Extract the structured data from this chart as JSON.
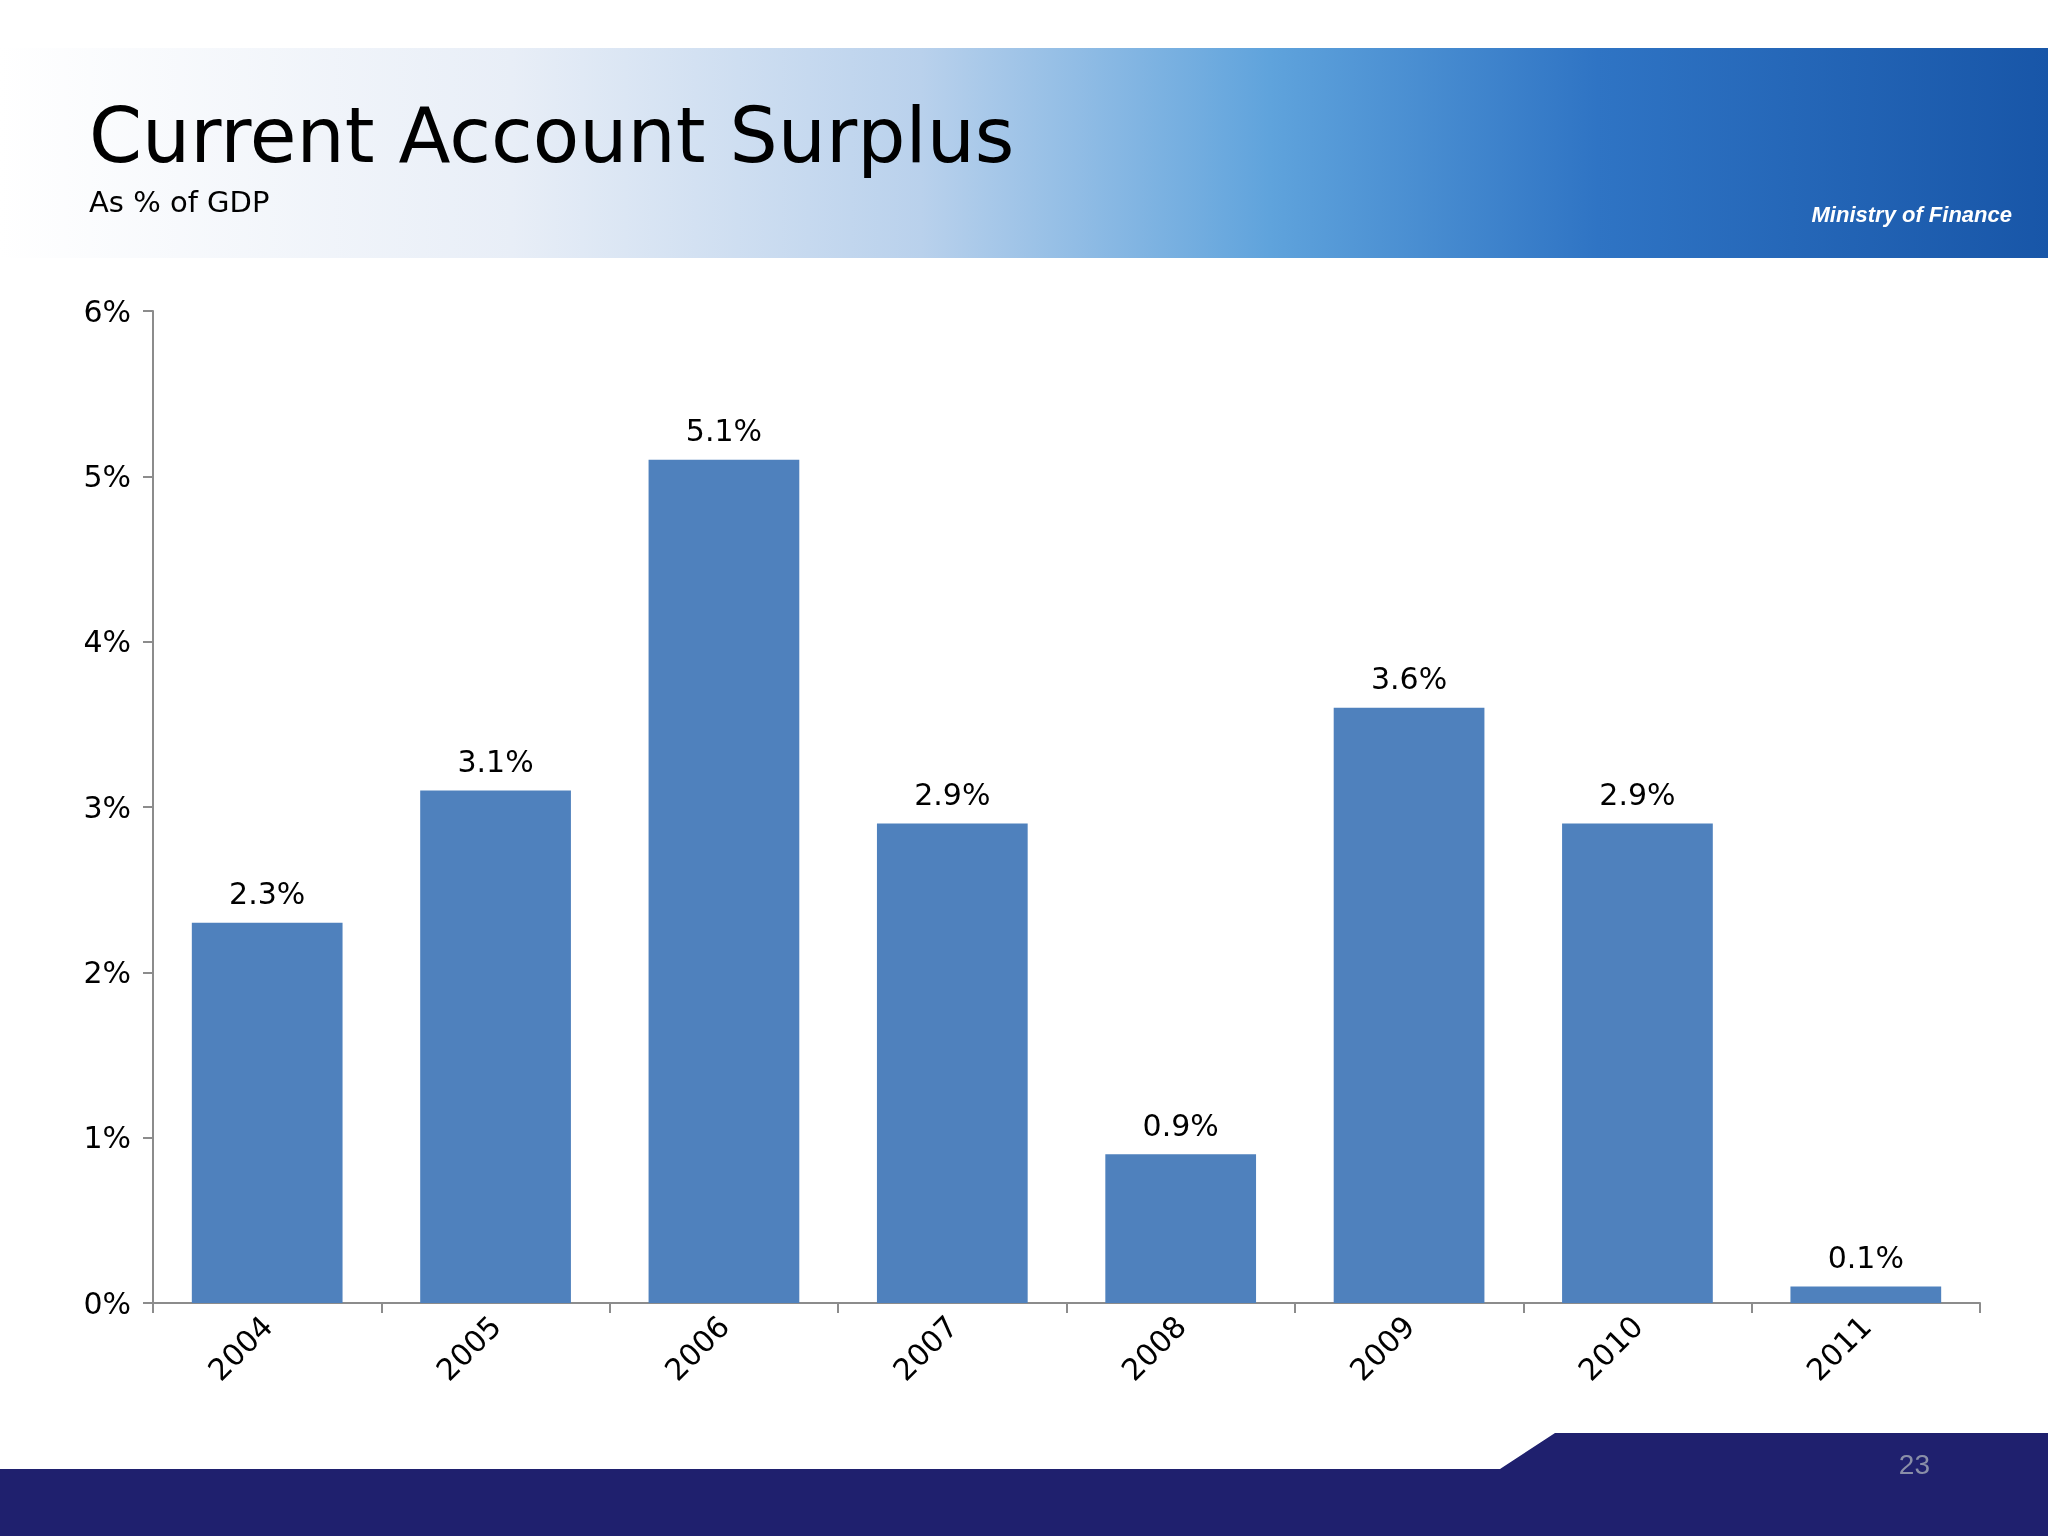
{
  "chart_data": {
    "type": "bar",
    "title": "Current Account Surplus",
    "subtitle": "As % of GDP",
    "categories": [
      "2004",
      "2005",
      "2006",
      "2007",
      "2008",
      "2009",
      "2010",
      "2011"
    ],
    "values": [
      2.3,
      3.1,
      5.1,
      2.9,
      0.9,
      3.6,
      2.9,
      0.1
    ],
    "value_labels": [
      "2.3%",
      "3.1%",
      "5.1%",
      "2.9%",
      "0.9%",
      "3.6%",
      "2.9%",
      "0.1%"
    ],
    "color": "#4f81bd",
    "ylim": [
      0,
      6
    ],
    "yticks": [
      {
        "value": 0,
        "label": "0%"
      },
      {
        "value": 1,
        "label": "1%"
      },
      {
        "value": 2,
        "label": "2%"
      },
      {
        "value": 3,
        "label": "3%"
      },
      {
        "value": 4,
        "label": "4%"
      },
      {
        "value": 5,
        "label": "5%"
      },
      {
        "value": 6,
        "label": "6%"
      }
    ],
    "grid": false,
    "annotations": [
      "Ministry of Finance",
      "23"
    ]
  }
}
